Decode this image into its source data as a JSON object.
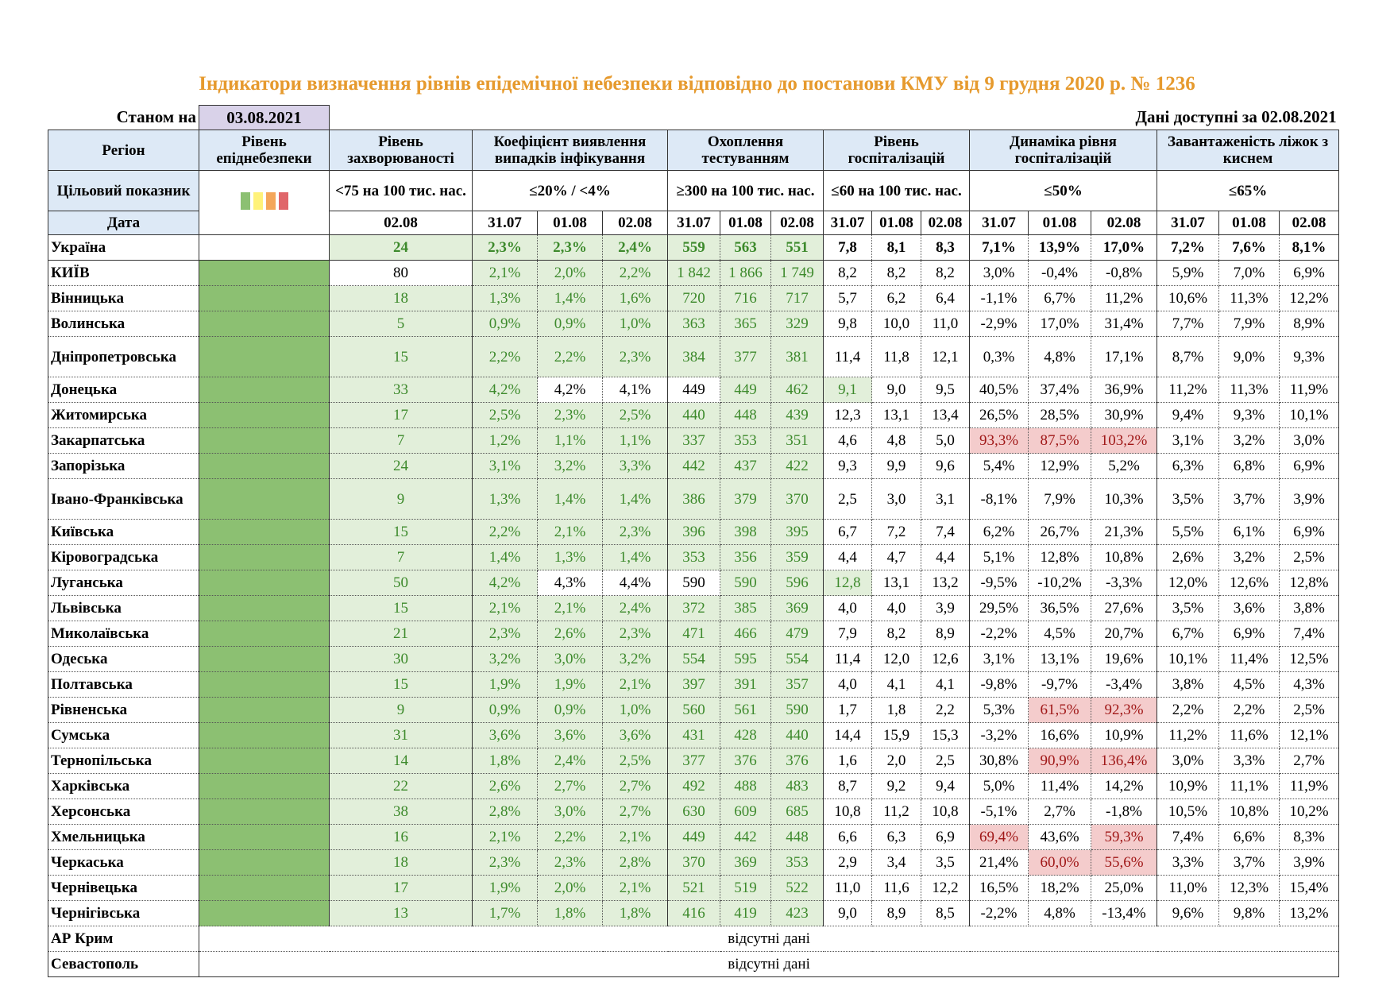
{
  "header": {
    "title": "Індикатори визначення рівнів епідемічної небезпеки відповідно до постанови КМУ від 9 грудня 2020 р. № 1236",
    "as_of_label": "Станом на",
    "as_of_date": "03.08.2021",
    "available_label": "Дані доступні за",
    "available_date": "02.08.2021",
    "columns": [
      "Регіон",
      "Рівень епіднебезпеки",
      "Рівень захворюваності",
      "Коефіцієнт виявлення випадків інфікування",
      "Охоплення тестуванням",
      "Рівень госпіталізацій",
      "Динаміка рівня госпіталізацій",
      "Завантаженість ліжок з киснем"
    ],
    "target_label": "Цільовий показник",
    "targets": [
      "<75 на 100 тис. нас.",
      "≤20% / <4%",
      "≥300 на 100 тис. нас.",
      "≤60 на 100 тис. нас.",
      "≤50%",
      "≤65%"
    ],
    "date_label": "Дата",
    "dates": [
      "02.08",
      "31.07",
      "01.08",
      "02.08",
      "31.07",
      "01.08",
      "02.08",
      "31.07",
      "01.08",
      "02.08",
      "31.07",
      "01.08",
      "02.08",
      "31.07",
      "01.08",
      "02.08"
    ]
  },
  "shade_colors": {
    "g": "#e2efda",
    "w": "#ffffff",
    "r": "#f4cccc"
  },
  "table": {
    "rows": [
      {
        "region": "Україна",
        "shade": "wgggggggwwwwwwwww",
        "cells": [
          "24",
          "2,3%",
          "2,3%",
          "2,4%",
          "559",
          "563",
          "551",
          "7,8",
          "8,1",
          "8,3",
          "7,1%",
          "13,9%",
          "17,0%",
          "7,2%",
          "7,6%",
          "8,1%"
        ]
      },
      {
        "region": "КИЇВ",
        "shade": "gwggggggwwwwwwwww",
        "cells": [
          "80",
          "2,1%",
          "2,0%",
          "2,2%",
          "1 842",
          "1 866",
          "1 749",
          "8,2",
          "8,2",
          "8,2",
          "3,0%",
          "-0,4%",
          "-0,8%",
          "5,9%",
          "7,0%",
          "6,9%"
        ]
      },
      {
        "region": "Вінницька",
        "shade": "ggggggggwwwwwwwww",
        "cells": [
          "18",
          "1,3%",
          "1,4%",
          "1,6%",
          "720",
          "716",
          "717",
          "5,7",
          "6,2",
          "6,4",
          "-1,1%",
          "6,7%",
          "11,2%",
          "10,6%",
          "11,3%",
          "12,2%"
        ]
      },
      {
        "region": "Волинська",
        "shade": "ggggggggwwwwwwwww",
        "cells": [
          "5",
          "0,9%",
          "0,9%",
          "1,0%",
          "363",
          "365",
          "329",
          "9,8",
          "10,0",
          "11,0",
          "-2,9%",
          "17,0%",
          "31,4%",
          "7,7%",
          "7,9%",
          "8,9%"
        ]
      },
      {
        "region": "Дніпропетровська",
        "shade": "ggggggggwwwwwwwww",
        "cells": [
          "15",
          "2,2%",
          "2,2%",
          "2,3%",
          "384",
          "377",
          "381",
          "11,4",
          "11,8",
          "12,1",
          "0,3%",
          "4,8%",
          "17,1%",
          "8,7%",
          "9,0%",
          "9,3%"
        ]
      },
      {
        "region": "Донецька",
        "shade": "gggwwwgggwwwwwwww",
        "cells": [
          "33",
          "4,2%",
          "4,2%",
          "4,1%",
          "449",
          "449",
          "462",
          "9,1",
          "9,0",
          "9,5",
          "40,5%",
          "37,4%",
          "36,9%",
          "11,2%",
          "11,3%",
          "11,9%"
        ]
      },
      {
        "region": "Житомирська",
        "shade": "ggggggggwwwwwwwww",
        "cells": [
          "17",
          "2,5%",
          "2,3%",
          "2,5%",
          "440",
          "448",
          "439",
          "12,3",
          "13,1",
          "13,4",
          "26,5%",
          "28,5%",
          "30,9%",
          "9,4%",
          "9,3%",
          "10,1%"
        ]
      },
      {
        "region": "Закарпатська",
        "shade": "ggggggggwwwrrrwww",
        "cells": [
          "7",
          "1,2%",
          "1,1%",
          "1,1%",
          "337",
          "353",
          "351",
          "4,6",
          "4,8",
          "5,0",
          "93,3%",
          "87,5%",
          "103,2%",
          "3,1%",
          "3,2%",
          "3,0%"
        ]
      },
      {
        "region": "Запорізька",
        "shade": "ggggggggwwwwwwwww",
        "cells": [
          "24",
          "3,1%",
          "3,2%",
          "3,3%",
          "442",
          "437",
          "422",
          "9,3",
          "9,9",
          "9,6",
          "5,4%",
          "12,9%",
          "5,2%",
          "6,3%",
          "6,8%",
          "6,9%"
        ]
      },
      {
        "region": "Івано-Франківська",
        "shade": "ggggggggwwwwwwwww",
        "cells": [
          "9",
          "1,3%",
          "1,4%",
          "1,4%",
          "386",
          "379",
          "370",
          "2,5",
          "3,0",
          "3,1",
          "-8,1%",
          "7,9%",
          "10,3%",
          "3,5%",
          "3,7%",
          "3,9%"
        ]
      },
      {
        "region": "Київська",
        "shade": "ggggggggwwwwwwwww",
        "cells": [
          "15",
          "2,2%",
          "2,1%",
          "2,3%",
          "396",
          "398",
          "395",
          "6,7",
          "7,2",
          "7,4",
          "6,2%",
          "26,7%",
          "21,3%",
          "5,5%",
          "6,1%",
          "6,9%"
        ]
      },
      {
        "region": "Кіровоградська",
        "shade": "ggggggggwwwwwwwww",
        "cells": [
          "7",
          "1,4%",
          "1,3%",
          "1,4%",
          "353",
          "356",
          "359",
          "4,4",
          "4,7",
          "4,4",
          "5,1%",
          "12,8%",
          "10,8%",
          "2,6%",
          "3,2%",
          "2,5%"
        ]
      },
      {
        "region": "Луганська",
        "shade": "gggwwwgggwwwwwwww",
        "cells": [
          "50",
          "4,2%",
          "4,3%",
          "4,4%",
          "590",
          "590",
          "596",
          "12,8",
          "13,1",
          "13,2",
          "-9,5%",
          "-10,2%",
          "-3,3%",
          "12,0%",
          "12,6%",
          "12,8%"
        ]
      },
      {
        "region": "Львівська",
        "shade": "ggggggggwwwwwwwww",
        "cells": [
          "15",
          "2,1%",
          "2,1%",
          "2,4%",
          "372",
          "385",
          "369",
          "4,0",
          "4,0",
          "3,9",
          "29,5%",
          "36,5%",
          "27,6%",
          "3,5%",
          "3,6%",
          "3,8%"
        ]
      },
      {
        "region": "Миколаївська",
        "shade": "ggggggggwwwwwwwww",
        "cells": [
          "21",
          "2,3%",
          "2,6%",
          "2,3%",
          "471",
          "466",
          "479",
          "7,9",
          "8,2",
          "8,9",
          "-2,2%",
          "4,5%",
          "20,7%",
          "6,7%",
          "6,9%",
          "7,4%"
        ]
      },
      {
        "region": "Одеська",
        "shade": "ggggggggwwwwwwwww",
        "cells": [
          "30",
          "3,2%",
          "3,0%",
          "3,2%",
          "554",
          "595",
          "554",
          "11,4",
          "12,0",
          "12,6",
          "3,1%",
          "13,1%",
          "19,6%",
          "10,1%",
          "11,4%",
          "12,5%"
        ]
      },
      {
        "region": "Полтавська",
        "shade": "ggggggggwwwwwwwww",
        "cells": [
          "15",
          "1,9%",
          "1,9%",
          "2,1%",
          "397",
          "391",
          "357",
          "4,0",
          "4,1",
          "4,1",
          "-9,8%",
          "-9,7%",
          "-3,4%",
          "3,8%",
          "4,5%",
          "4,3%"
        ]
      },
      {
        "region": "Рівненська",
        "shade": "ggggggggwwwwrrwww",
        "cells": [
          "9",
          "0,9%",
          "0,9%",
          "1,0%",
          "560",
          "561",
          "590",
          "1,7",
          "1,8",
          "2,2",
          "5,3%",
          "61,5%",
          "92,3%",
          "2,2%",
          "2,2%",
          "2,5%"
        ]
      },
      {
        "region": "Сумська",
        "shade": "ggggggggwwwwwwwww",
        "cells": [
          "31",
          "3,6%",
          "3,6%",
          "3,6%",
          "431",
          "428",
          "440",
          "14,4",
          "15,9",
          "15,3",
          "-3,2%",
          "16,6%",
          "10,9%",
          "11,2%",
          "11,6%",
          "12,1%"
        ]
      },
      {
        "region": "Тернопільська",
        "shade": "ggggggggwwwwrrwww",
        "cells": [
          "14",
          "1,8%",
          "2,4%",
          "2,5%",
          "377",
          "376",
          "376",
          "1,6",
          "2,0",
          "2,5",
          "30,8%",
          "90,9%",
          "136,4%",
          "3,0%",
          "3,3%",
          "2,7%"
        ]
      },
      {
        "region": "Харківська",
        "shade": "ggggggggwwwwwwwww",
        "cells": [
          "22",
          "2,6%",
          "2,7%",
          "2,7%",
          "492",
          "488",
          "483",
          "8,7",
          "9,2",
          "9,4",
          "5,0%",
          "11,4%",
          "14,2%",
          "10,9%",
          "11,1%",
          "11,9%"
        ]
      },
      {
        "region": "Херсонська",
        "shade": "ggggggggwwwwwwwww",
        "cells": [
          "38",
          "2,8%",
          "3,0%",
          "2,7%",
          "630",
          "609",
          "685",
          "10,8",
          "11,2",
          "10,8",
          "-5,1%",
          "2,7%",
          "-1,8%",
          "10,5%",
          "10,8%",
          "10,2%"
        ]
      },
      {
        "region": "Хмельницька",
        "shade": "ggggggggwwwrwrwww",
        "cells": [
          "16",
          "2,1%",
          "2,2%",
          "2,1%",
          "449",
          "442",
          "448",
          "6,6",
          "6,3",
          "6,9",
          "69,4%",
          "43,6%",
          "59,3%",
          "7,4%",
          "6,6%",
          "8,3%"
        ]
      },
      {
        "region": "Черкаська",
        "shade": "ggggggggwwwwrrwww",
        "cells": [
          "18",
          "2,3%",
          "2,3%",
          "2,8%",
          "370",
          "369",
          "353",
          "2,9",
          "3,4",
          "3,5",
          "21,4%",
          "60,0%",
          "55,6%",
          "3,3%",
          "3,7%",
          "3,9%"
        ]
      },
      {
        "region": "Чернівецька",
        "shade": "ggggggggwwwwwwwww",
        "cells": [
          "17",
          "1,9%",
          "2,0%",
          "2,1%",
          "521",
          "519",
          "522",
          "11,0",
          "11,6",
          "12,2",
          "16,5%",
          "18,2%",
          "25,0%",
          "11,0%",
          "12,3%",
          "15,4%"
        ]
      },
      {
        "region": "Чернігівська",
        "shade": "ggggggggwwwwwwwww",
        "cells": [
          "13",
          "1,7%",
          "1,8%",
          "1,8%",
          "416",
          "419",
          "423",
          "9,0",
          "8,9",
          "8,5",
          "-2,2%",
          "4,8%",
          "-13,4%",
          "9,6%",
          "9,8%",
          "13,2%"
        ]
      }
    ],
    "missing": [
      {
        "region": "АР Крим",
        "note": "відсутні дані"
      },
      {
        "region": "Севастополь",
        "note": "відсутні дані"
      }
    ]
  }
}
